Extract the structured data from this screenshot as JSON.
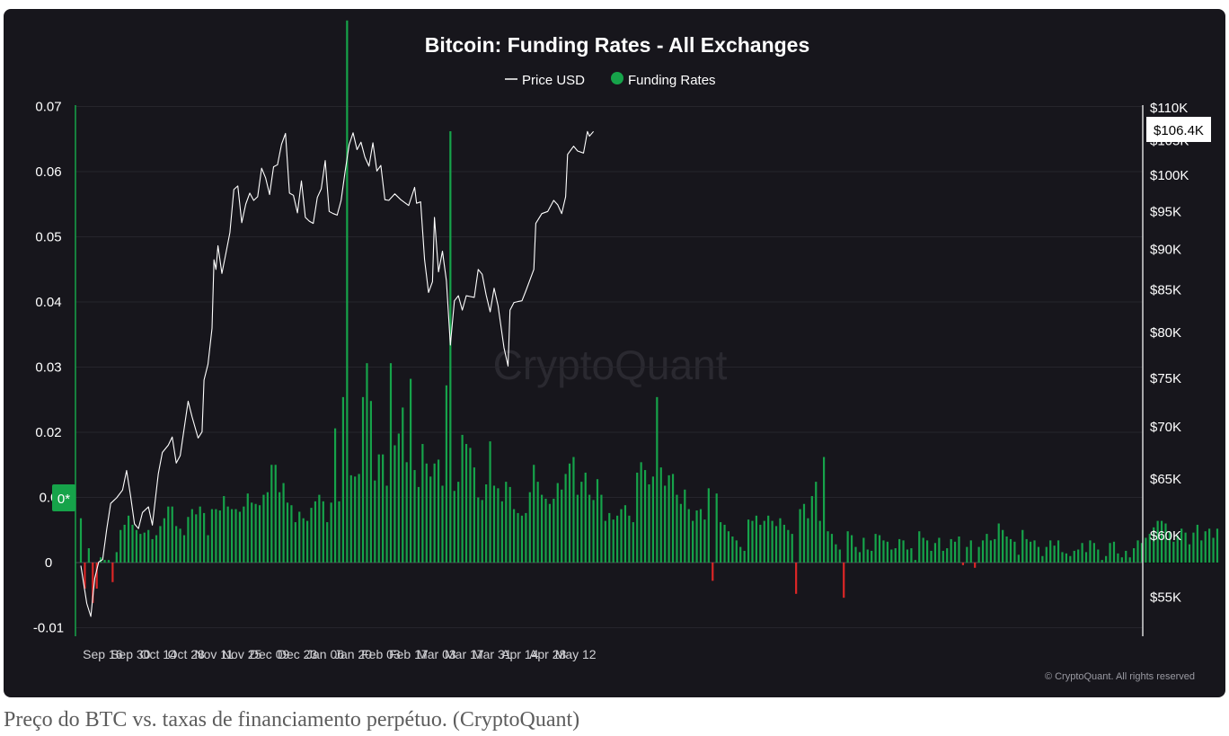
{
  "caption": "Preço do BTC vs. taxas de financiamento perpétuo. (CryptoQuant)",
  "chart_data": {
    "type": "bar+line",
    "title": "Bitcoin: Funding Rates - All Exchanges",
    "legend": [
      {
        "name": "Price USD",
        "marker": "line",
        "color": "#ffffff"
      },
      {
        "name": "Funding Rates",
        "marker": "dot",
        "color": "#16a34a"
      }
    ],
    "legend_position": "top-center",
    "watermark": "CryptoQuant",
    "copyright": "© CryptoQuant. All rights reserved",
    "x_ticks": [
      "Sep 16",
      "Sep 30",
      "Oct 14",
      "Oct 28",
      "Nov 11",
      "Nov 25",
      "Dec 09",
      "Dec 23",
      "Jan 06",
      "Jan 20",
      "Feb 03",
      "Feb 17",
      "Mar 03",
      "Mar 17",
      "Mar 31",
      "Apr 14",
      "Apr 28",
      "May 12"
    ],
    "y_left": {
      "ticks": [
        "0.07",
        "0.06",
        "0.05",
        "0.04",
        "0.03",
        "0.02",
        "0.0",
        "0",
        "-0.01"
      ],
      "range": [
        -0.011,
        0.071
      ]
    },
    "y_right": {
      "ticks": [
        "$110K",
        "$105K",
        "$100K",
        "$95K",
        "$90K",
        "$85K",
        "$80K",
        "$75K",
        "$70K",
        "$65K",
        "$60K",
        "$55K"
      ],
      "range": [
        50000,
        110000
      ],
      "scale": "log"
    },
    "current_price_label": "$106.4K",
    "zero_marker_label": "0*",
    "colors": {
      "positive": "#16a34a",
      "negative": "#dc2626",
      "price": "#ffffff",
      "background": "#17161c"
    },
    "funding_rates": {
      "start_date": "2024-09-05",
      "step_days": 2,
      "values": [
        0.0068,
        -0.004,
        0.0022,
        -0.0062,
        -0.004,
        0.0008,
        0.0004,
        0.0004,
        -0.003,
        0.0016,
        0.005,
        0.0058,
        0.0072,
        0.0058,
        0.005,
        0.0044,
        0.0046,
        0.005,
        0.0036,
        0.0042,
        0.0056,
        0.0068,
        0.0086,
        0.0086,
        0.0056,
        0.0052,
        0.0042,
        0.007,
        0.0082,
        0.0074,
        0.0086,
        0.0076,
        0.0042,
        0.0082,
        0.0082,
        0.008,
        0.0102,
        0.0086,
        0.0082,
        0.0082,
        0.0078,
        0.0086,
        0.0106,
        0.0092,
        0.009,
        0.0088,
        0.0104,
        0.0108,
        0.015,
        0.015,
        0.0108,
        0.0122,
        0.0092,
        0.0088,
        0.0062,
        0.0078,
        0.0068,
        0.0064,
        0.0084,
        0.0094,
        0.0104,
        0.0094,
        0.0062,
        0.0092,
        0.0206,
        0.0094,
        0.0254,
        0.0832,
        0.0134,
        0.0132,
        0.0136,
        0.0254,
        0.0306,
        0.0248,
        0.0126,
        0.0166,
        0.0166,
        0.0118,
        0.0306,
        0.018,
        0.0198,
        0.0238,
        0.0154,
        0.0282,
        0.0142,
        0.0116,
        0.0182,
        0.0152,
        0.0132,
        0.0152,
        0.0158,
        0.0118,
        0.0272,
        0.0662,
        0.011,
        0.0124,
        0.0196,
        0.0182,
        0.0176,
        0.0146,
        0.01,
        0.0096,
        0.012,
        0.0186,
        0.0118,
        0.0114,
        0.0094,
        0.0124,
        0.0116,
        0.0082,
        0.0076,
        0.0072,
        0.0076,
        0.0108,
        0.015,
        0.0124,
        0.0104,
        0.0098,
        0.009,
        0.0098,
        0.0122,
        0.0112,
        0.0136,
        0.0152,
        0.0162,
        0.0104,
        0.0124,
        0.0138,
        0.0104,
        0.0096,
        0.0128,
        0.0104,
        0.0064,
        0.0076,
        0.0066,
        0.0072,
        0.0082,
        0.0088,
        0.0072,
        0.0062,
        0.0138,
        0.0154,
        0.0142,
        0.012,
        0.0132,
        0.0254,
        0.0146,
        0.0118,
        0.0134,
        0.0136,
        0.0104,
        0.009,
        0.0112,
        0.0082,
        0.0064,
        0.008,
        0.0082,
        0.0066,
        0.0114,
        -0.0028,
        0.0106,
        0.0062,
        0.0058,
        0.0048,
        0.004,
        0.0034,
        0.0024,
        0.0018,
        0.0066,
        0.0064,
        0.0072,
        0.0058,
        0.0064,
        0.0072,
        0.0064,
        0.0056,
        0.0068,
        0.0058,
        0.005,
        0.0044,
        -0.0048,
        0.0082,
        0.009,
        0.0068,
        0.0102,
        0.0124,
        0.0064,
        0.0162,
        0.0048,
        0.0044,
        0.0028,
        0.002,
        -0.0054,
        0.0048,
        0.0042,
        0.0024,
        0.0016,
        0.0038,
        0.002,
        0.0018,
        0.0044,
        0.0042,
        0.0034,
        0.0032,
        0.002,
        0.0022,
        0.0036,
        0.0034,
        0.002,
        0.0022,
        0.0004,
        0.0048,
        0.0038,
        0.0034,
        0.0018,
        0.003,
        0.0038,
        0.0018,
        0.0022,
        0.0036,
        0.0032,
        0.004,
        -0.0004,
        0.0024,
        0.0034,
        -0.0008,
        0.0024,
        0.0034,
        0.0044,
        0.0034,
        0.0036,
        0.006,
        0.005,
        0.004,
        0.0036,
        0.0032,
        0.0012,
        0.005,
        0.0036,
        0.0032,
        0.0034,
        0.0024,
        0.001,
        0.0024,
        0.0034,
        0.0026,
        0.0034,
        0.0016,
        0.0014,
        0.001,
        0.0018,
        0.002,
        0.003,
        0.0016,
        0.0034,
        0.003,
        0.002,
        0.0004,
        0.001,
        0.003,
        0.0032,
        0.0014,
        0.0008,
        0.0018,
        0.0008,
        0.0022,
        0.0034,
        0.003,
        0.0038,
        0.0044,
        0.0054,
        0.0064,
        0.0064,
        0.006,
        0.0048,
        0.0032,
        0.0042,
        0.0052,
        0.0046,
        0.0028,
        0.0046,
        0.0058,
        0.0034,
        0.0048,
        0.0052,
        0.0038,
        0.0052
      ]
    },
    "price": {
      "points": [
        {
          "x": "2024-09-05",
          "y": 57500
        },
        {
          "x": "2024-09-08",
          "y": 54500
        },
        {
          "x": "2024-09-10",
          "y": 53500
        },
        {
          "x": "2024-09-12",
          "y": 56500
        },
        {
          "x": "2024-09-14",
          "y": 57800
        },
        {
          "x": "2024-09-16",
          "y": 58000
        },
        {
          "x": "2024-09-18",
          "y": 60500
        },
        {
          "x": "2024-09-20",
          "y": 62800
        },
        {
          "x": "2024-09-23",
          "y": 63300
        },
        {
          "x": "2024-09-26",
          "y": 64000
        },
        {
          "x": "2024-09-28",
          "y": 65800
        },
        {
          "x": "2024-09-30",
          "y": 63500
        },
        {
          "x": "2024-10-02",
          "y": 61000
        },
        {
          "x": "2024-10-04",
          "y": 60600
        },
        {
          "x": "2024-10-06",
          "y": 62000
        },
        {
          "x": "2024-10-09",
          "y": 62500
        },
        {
          "x": "2024-10-11",
          "y": 60900
        },
        {
          "x": "2024-10-14",
          "y": 65500
        },
        {
          "x": "2024-10-16",
          "y": 67500
        },
        {
          "x": "2024-10-19",
          "y": 68200
        },
        {
          "x": "2024-10-21",
          "y": 69000
        },
        {
          "x": "2024-10-23",
          "y": 66500
        },
        {
          "x": "2024-10-25",
          "y": 67200
        },
        {
          "x": "2024-10-29",
          "y": 72600
        },
        {
          "x": "2024-10-31",
          "y": 71000
        },
        {
          "x": "2024-11-03",
          "y": 68900
        },
        {
          "x": "2024-11-05",
          "y": 69500
        },
        {
          "x": "2024-11-06",
          "y": 74800
        },
        {
          "x": "2024-11-08",
          "y": 76500
        },
        {
          "x": "2024-11-10",
          "y": 80500
        },
        {
          "x": "2024-11-11",
          "y": 88700
        },
        {
          "x": "2024-11-12",
          "y": 87500
        },
        {
          "x": "2024-11-13",
          "y": 90500
        },
        {
          "x": "2024-11-15",
          "y": 87000
        },
        {
          "x": "2024-11-17",
          "y": 89500
        },
        {
          "x": "2024-11-19",
          "y": 92200
        },
        {
          "x": "2024-11-21",
          "y": 98000
        },
        {
          "x": "2024-11-23",
          "y": 98500
        },
        {
          "x": "2024-11-25",
          "y": 93500
        },
        {
          "x": "2024-11-27",
          "y": 96000
        },
        {
          "x": "2024-11-29",
          "y": 97500
        },
        {
          "x": "2024-12-01",
          "y": 96500
        },
        {
          "x": "2024-12-03",
          "y": 97000
        },
        {
          "x": "2024-12-05",
          "y": 101000
        },
        {
          "x": "2024-12-07",
          "y": 99600
        },
        {
          "x": "2024-12-09",
          "y": 97300
        },
        {
          "x": "2024-12-11",
          "y": 101200
        },
        {
          "x": "2024-12-13",
          "y": 101500
        },
        {
          "x": "2024-12-15",
          "y": 104500
        },
        {
          "x": "2024-12-17",
          "y": 106100
        },
        {
          "x": "2024-12-19",
          "y": 97500
        },
        {
          "x": "2024-12-21",
          "y": 97200
        },
        {
          "x": "2024-12-23",
          "y": 94800
        },
        {
          "x": "2024-12-25",
          "y": 99200
        },
        {
          "x": "2024-12-27",
          "y": 94200
        },
        {
          "x": "2024-12-29",
          "y": 93700
        },
        {
          "x": "2024-12-31",
          "y": 93400
        },
        {
          "x": "2025-01-02",
          "y": 96900
        },
        {
          "x": "2025-01-04",
          "y": 98100
        },
        {
          "x": "2025-01-06",
          "y": 102100
        },
        {
          "x": "2025-01-08",
          "y": 95000
        },
        {
          "x": "2025-01-10",
          "y": 94700
        },
        {
          "x": "2025-01-12",
          "y": 94500
        },
        {
          "x": "2025-01-14",
          "y": 96500
        },
        {
          "x": "2025-01-16",
          "y": 100500
        },
        {
          "x": "2025-01-18",
          "y": 104400
        },
        {
          "x": "2025-01-20",
          "y": 106200
        },
        {
          "x": "2025-01-22",
          "y": 103700
        },
        {
          "x": "2025-01-24",
          "y": 104800
        },
        {
          "x": "2025-01-26",
          "y": 102600
        },
        {
          "x": "2025-01-28",
          "y": 101300
        },
        {
          "x": "2025-01-30",
          "y": 104700
        },
        {
          "x": "2025-02-01",
          "y": 100600
        },
        {
          "x": "2025-02-03",
          "y": 101400
        },
        {
          "x": "2025-02-05",
          "y": 96600
        },
        {
          "x": "2025-02-07",
          "y": 96500
        },
        {
          "x": "2025-02-10",
          "y": 97400
        },
        {
          "x": "2025-02-13",
          "y": 96600
        },
        {
          "x": "2025-02-17",
          "y": 95800
        },
        {
          "x": "2025-02-20",
          "y": 98300
        },
        {
          "x": "2025-02-21",
          "y": 96100
        },
        {
          "x": "2025-02-23",
          "y": 96300
        },
        {
          "x": "2025-02-25",
          "y": 88700
        },
        {
          "x": "2025-02-27",
          "y": 84700
        },
        {
          "x": "2025-03-01",
          "y": 86000
        },
        {
          "x": "2025-03-02",
          "y": 94200
        },
        {
          "x": "2025-03-04",
          "y": 87200
        },
        {
          "x": "2025-03-06",
          "y": 89800
        },
        {
          "x": "2025-03-08",
          "y": 86100
        },
        {
          "x": "2025-03-10",
          "y": 78600
        },
        {
          "x": "2025-03-12",
          "y": 83700
        },
        {
          "x": "2025-03-14",
          "y": 84300
        },
        {
          "x": "2025-03-16",
          "y": 82600
        },
        {
          "x": "2025-03-18",
          "y": 84300
        },
        {
          "x": "2025-03-20",
          "y": 84200
        },
        {
          "x": "2025-03-22",
          "y": 84100
        },
        {
          "x": "2025-03-24",
          "y": 87500
        },
        {
          "x": "2025-03-26",
          "y": 86900
        },
        {
          "x": "2025-03-28",
          "y": 84400
        },
        {
          "x": "2025-03-30",
          "y": 82400
        },
        {
          "x": "2025-04-01",
          "y": 85200
        },
        {
          "x": "2025-04-03",
          "y": 83100
        },
        {
          "x": "2025-04-06",
          "y": 78300
        },
        {
          "x": "2025-04-08",
          "y": 76300
        },
        {
          "x": "2025-04-09",
          "y": 82600
        },
        {
          "x": "2025-04-11",
          "y": 83500
        },
        {
          "x": "2025-04-13",
          "y": 83600
        },
        {
          "x": "2025-04-15",
          "y": 83700
        },
        {
          "x": "2025-04-17",
          "y": 84900
        },
        {
          "x": "2025-04-21",
          "y": 87500
        },
        {
          "x": "2025-04-22",
          "y": 93400
        },
        {
          "x": "2025-04-25",
          "y": 94700
        },
        {
          "x": "2025-04-28",
          "y": 95000
        },
        {
          "x": "2025-05-01",
          "y": 96500
        },
        {
          "x": "2025-05-03",
          "y": 95900
        },
        {
          "x": "2025-05-05",
          "y": 94700
        },
        {
          "x": "2025-05-07",
          "y": 97000
        },
        {
          "x": "2025-05-08",
          "y": 103000
        },
        {
          "x": "2025-05-11",
          "y": 104200
        },
        {
          "x": "2025-05-13",
          "y": 103500
        },
        {
          "x": "2025-05-16",
          "y": 103200
        },
        {
          "x": "2025-05-18",
          "y": 106400
        },
        {
          "x": "2025-05-19",
          "y": 105700
        },
        {
          "x": "2025-05-21",
          "y": 106400
        }
      ]
    }
  }
}
